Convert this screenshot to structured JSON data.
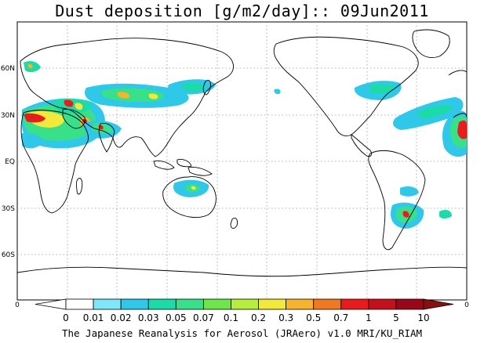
{
  "title": "Dust deposition [g/m2/day]:: 09Jun2011",
  "footer": "The Japanese Reanalysis for Aerosol (JRAero) v1.0 MRI/KU_RIAM",
  "lat_labels": [
    "60N",
    "30N",
    "EQ",
    "30S",
    "60S"
  ],
  "axis_corner_left": "0",
  "axis_corner_right": "0",
  "colorbar": {
    "labels": [
      "0",
      "0.01",
      "0.02",
      "0.03",
      "0.05",
      "0.07",
      "0.1",
      "0.2",
      "0.3",
      "0.5",
      "0.7",
      "1",
      "5",
      "10"
    ],
    "colors": [
      "#ffffff",
      "#ffffff",
      "#7ee8fa",
      "#2fc8e8",
      "#1ddba8",
      "#39e08a",
      "#6de64c",
      "#b5ee3c",
      "#f2e93a",
      "#f6b42e",
      "#f07820",
      "#e81c1c",
      "#c3101a",
      "#98081a",
      "#8a1010"
    ]
  },
  "dust_colors": {
    "light": "#7ee8fa",
    "cyan": "#2fc8e8",
    "teal": "#1ddba8",
    "green": "#39e08a",
    "lime": "#6de64c",
    "yellow": "#f2e93a",
    "orange": "#f6b42e",
    "red": "#e81c1c",
    "dark_red": "#98081a"
  }
}
